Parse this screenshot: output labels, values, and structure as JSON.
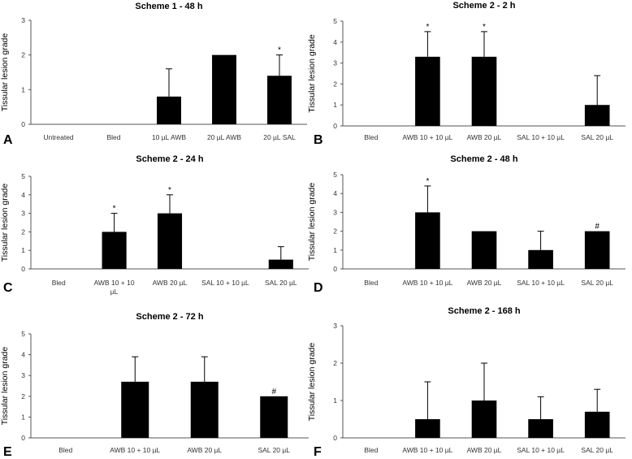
{
  "chart_data": [
    {
      "panel": "A",
      "type": "bar",
      "title": "Scheme 1 - 48 h",
      "ylabel": "Tissular lesion grade",
      "ylim": [
        0,
        3
      ],
      "yticks": [
        0,
        1,
        2,
        3
      ],
      "categories": [
        "Untreated",
        "Bled",
        "10 µL AWB",
        "20 µL AWB",
        "20 µL SAL"
      ],
      "values": [
        0,
        0,
        0.8,
        2,
        1.4
      ],
      "errors": [
        0,
        0,
        0.8,
        0,
        0.6
      ],
      "annotations": [
        "",
        "",
        "",
        "",
        "*"
      ]
    },
    {
      "panel": "B",
      "type": "bar",
      "title": "Scheme 2 - 2 h",
      "ylabel": "Tissular lesion grade",
      "ylim": [
        0,
        5
      ],
      "yticks": [
        0,
        1,
        2,
        3,
        4,
        5
      ],
      "categories": [
        "Bled",
        "AWB 10 + 10 µL",
        "AWB 20 µL",
        "SAL 10 + 10 µL",
        "SAL 20 µL"
      ],
      "values": [
        0,
        3.3,
        3.3,
        0,
        1
      ],
      "errors": [
        0,
        1.2,
        1.2,
        0,
        1.4
      ],
      "annotations": [
        "",
        "*",
        "*",
        "",
        ""
      ]
    },
    {
      "panel": "C",
      "type": "bar",
      "title": "Scheme 2 - 24 h",
      "ylabel": "Tissular lesion grade",
      "ylim": [
        0,
        5
      ],
      "yticks": [
        0,
        1,
        2,
        3,
        4,
        5
      ],
      "categories": [
        "Bled",
        "AWB 10 + 10 µL",
        "AWB 20 µL",
        "SAL 10 + 10 µL",
        "SAL 20 µL"
      ],
      "values": [
        0,
        2,
        3,
        0,
        0.5
      ],
      "errors": [
        0,
        1,
        1,
        0,
        0.7
      ],
      "annotations": [
        "",
        "*",
        "*",
        "",
        ""
      ]
    },
    {
      "panel": "D",
      "type": "bar",
      "title": "Scheme 2 - 48 h",
      "ylabel": "Tissular lesion grade",
      "ylim": [
        0,
        5
      ],
      "yticks": [
        0,
        1,
        2,
        3,
        4,
        5
      ],
      "categories": [
        "Bled",
        "AWB 10 + 10 µL",
        "AWB 20 µL",
        "SAL 10 + 10 µL",
        "SAL 20 µL"
      ],
      "values": [
        0,
        3,
        2,
        1,
        2
      ],
      "errors": [
        0,
        1.4,
        0,
        1,
        0
      ],
      "annotations": [
        "",
        "*",
        "",
        "",
        "#"
      ]
    },
    {
      "panel": "E",
      "type": "bar",
      "title": "Scheme 2 - 72 h",
      "ylabel": "Tissular lesion grade",
      "ylim": [
        0,
        5
      ],
      "yticks": [
        0,
        1,
        2,
        3,
        4,
        5
      ],
      "categories": [
        "Bled",
        "AWB 10 + 10 µL",
        "AWB 20 µL",
        "SAL 20 µL"
      ],
      "values": [
        0,
        2.7,
        2.7,
        2
      ],
      "errors": [
        0,
        1.2,
        1.2,
        0
      ],
      "annotations": [
        "",
        "",
        "",
        "#"
      ]
    },
    {
      "panel": "F",
      "type": "bar",
      "title": "Scheme 2 - 168 h",
      "ylabel": "Tissular lesion grade",
      "ylim": [
        0,
        3
      ],
      "yticks": [
        0,
        1,
        2,
        3
      ],
      "categories": [
        "Bled",
        "AWB 10 + 10 µL",
        "AWB 20 µL",
        "SAL 10 + 10 µL",
        "SAL 20 µL"
      ],
      "values": [
        0,
        0.5,
        1,
        0.5,
        0.7
      ],
      "errors": [
        0,
        1,
        1,
        0.6,
        0.6
      ],
      "annotations": [
        "",
        "",
        "",
        "",
        ""
      ]
    }
  ]
}
